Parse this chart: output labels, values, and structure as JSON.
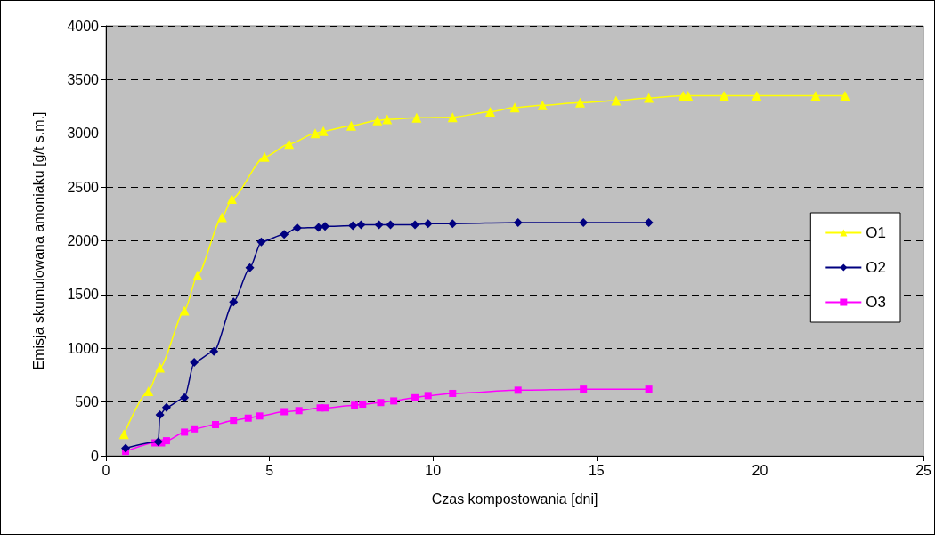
{
  "chart_data": {
    "type": "line",
    "xlabel": "Czas kompostowania [dni]",
    "ylabel": "Emisja skumulowana amoniaku [g/t s.m.]",
    "xlim": [
      0,
      25
    ],
    "xticks": [
      0,
      5,
      10,
      15,
      20,
      25
    ],
    "ylim": [
      0,
      4000
    ],
    "yticks": [
      0,
      500,
      1000,
      1500,
      2000,
      2500,
      3000,
      3500,
      4000
    ],
    "grid": "y",
    "legend": "right",
    "line_style": "solid",
    "series": [
      {
        "name": "O1",
        "color": "#ffff00",
        "marker": "triangle",
        "x": [
          0.55,
          1.3,
          1.65,
          2.4,
          2.8,
          3.55,
          3.85,
          4.85,
          5.6,
          6.4,
          6.65,
          7.5,
          8.3,
          8.6,
          9.5,
          10.6,
          11.75,
          12.5,
          13.35,
          14.5,
          15.6,
          16.6,
          17.65,
          17.8,
          18.9,
          19.9,
          21.7,
          22.6
        ],
        "values": [
          200,
          600,
          820,
          1350,
          1680,
          2220,
          2390,
          2780,
          2900,
          3000,
          3020,
          3070,
          3120,
          3130,
          3145,
          3150,
          3200,
          3240,
          3260,
          3285,
          3305,
          3330,
          3350,
          3350,
          3350,
          3350,
          3350,
          3350
        ]
      },
      {
        "name": "O2",
        "color": "#000080",
        "marker": "diamond",
        "x": [
          0.6,
          1.6,
          1.65,
          1.85,
          2.4,
          2.7,
          3.3,
          3.9,
          4.4,
          4.75,
          5.45,
          5.85,
          6.5,
          6.7,
          7.55,
          7.8,
          8.35,
          8.7,
          9.45,
          9.85,
          10.6,
          12.6,
          14.6,
          16.6
        ],
        "values": [
          70,
          130,
          380,
          450,
          540,
          870,
          970,
          1430,
          1750,
          1990,
          2060,
          2120,
          2125,
          2135,
          2140,
          2150,
          2150,
          2150,
          2150,
          2160,
          2160,
          2170,
          2170,
          2170
        ]
      },
      {
        "name": "O3",
        "color": "#ff00ff",
        "marker": "square",
        "x": [
          0.6,
          1.5,
          1.7,
          1.85,
          2.4,
          2.7,
          3.35,
          3.9,
          4.35,
          4.7,
          5.45,
          5.9,
          6.55,
          6.7,
          7.6,
          7.85,
          8.4,
          8.8,
          9.45,
          9.85,
          10.6,
          12.6,
          14.6,
          16.6
        ],
        "values": [
          40,
          120,
          120,
          140,
          220,
          250,
          290,
          330,
          350,
          370,
          410,
          420,
          445,
          445,
          470,
          480,
          495,
          510,
          540,
          560,
          580,
          610,
          620,
          620
        ]
      }
    ]
  }
}
